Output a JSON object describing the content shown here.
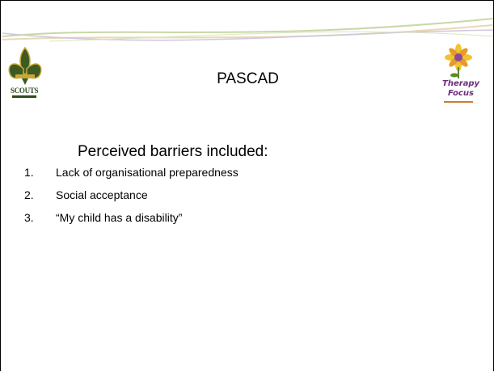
{
  "header": {
    "title": "PASCAD",
    "logos": {
      "left": "SCOUTS",
      "right": [
        "Therapy",
        "Focus"
      ]
    }
  },
  "body": {
    "heading": "Perceived barriers included:",
    "items": [
      {
        "number": "1.",
        "text": "Lack of organisational preparedness"
      },
      {
        "number": "2.",
        "text": "Social acceptance"
      },
      {
        "number": "3.",
        "text": "“My child has a disability”"
      }
    ]
  }
}
